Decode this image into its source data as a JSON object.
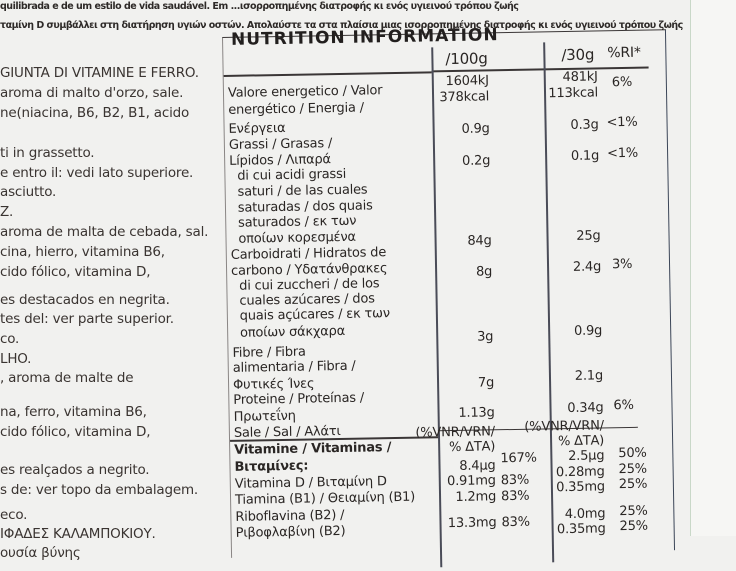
{
  "top_text": [
    "quilibrada e de um estilo de vida saudável. Em   ...ισορροπημένης διατροφής κι ενός υγιεινού τρόπου ζωής",
    "ταμίνη D συμβάλλει στη διατήρηση υγιών οστών. Απολαύστε τα στα πλαίσια μιας ισορροπημένης διατροφής κι ενός υγιεινού τρόπου ζωής"
  ],
  "ingredients_lines": [
    "GIUNTA DI VITAMINE E FERRO.",
    "aroma di malto d'orzo, sale.",
    "ne(niacina, B6, B2, B1, acido",
    "ti in grassetto.",
    "e entro il: vedi lato superiore.",
    "asciutto.",
    "Z.",
    "aroma de malta de cebada, sal.",
    "cina, hierro, vitamina B6,",
    "cido fólico, vitamina D,",
    "es destacados en negrita.",
    "tes del: ver parte superior.",
    "co.",
    "LHO.",
    ", aroma de malte de",
    "na, ferro, vitamina B6,",
    "cido fólico, vitamina D,",
    "es realçados a negrito.",
    "s de: ver topo da embalagem.",
    "eco.",
    "ΙΦΑΔΕΣ ΚΑΛΑΜΠΟΚΙΟΥ.",
    "                  ουσία βύνης"
  ],
  "nutrition": {
    "title": "NUTRITION INFORMATION",
    "headers": {
      "per100": "/100g",
      "per30": "/30g",
      "ri": "%RI*"
    },
    "labels": [
      "Valore energetico / Valor",
      "energético / Energia /",
      "Ενέργεια",
      "Grassi / Grasas /",
      "Lípidos / Λιπαρά",
      "  di cui acidi grassi",
      "  saturi / de las cuales",
      "  saturadas / dos quais",
      "  saturados / εκ των",
      "  οποίων κορεσμένα",
      "Carboidrati / Hidratos de",
      "carbono / Υδατάνθρακες",
      "  di cui zuccheri / de los",
      "  cuales azúcares / dos",
      "  quais açúcares / εκ των",
      "  οποίων σάκχαρα",
      "Fibre / Fibra",
      "alimentaria / Fibra /",
      "Φυτικές Ίνες",
      "Proteine / Proteínas /",
      "Πρωτεΐνη",
      "Sale / Sal / Αλάτι",
      "Vitamine / Vitaminas /",
      "Βιταμίνες:",
      "Vitamina D / Βιταμίνη D",
      "Tiamina (B1) / Θειαμίνη (B1)",
      "Riboflavina (B2) /",
      "Ριβοφλαβίνη (B2)"
    ],
    "per100": [
      "1604kJ",
      "378kcal",
      "0.9g",
      "0.2g",
      "84g",
      "8g",
      "3g",
      "7g",
      "1.13g",
      "(%VNR/VRN/",
      "% ΔΤΑ)",
      "8.4µg",
      "0.91mg",
      "1.2mg",
      "13.3mg"
    ],
    "per100_pct": [
      "167%",
      "83%",
      "83%",
      "83%"
    ],
    "per30": [
      "481kJ",
      "113kcal",
      "0.3g",
      "0.1g",
      "25g",
      "2.4g",
      "0.9g",
      "2.1g",
      "0.34g",
      "(%VNR/VRN/",
      "% ΔΤΑ)",
      "2.5µg",
      "0.28mg",
      "0.35mg",
      "4.0mg",
      "0.35mg"
    ],
    "ri": [
      "6%",
      "<1%",
      "<1%",
      "3%",
      "6%",
      "50%",
      "25%",
      "25%",
      "25%",
      "25%"
    ]
  }
}
